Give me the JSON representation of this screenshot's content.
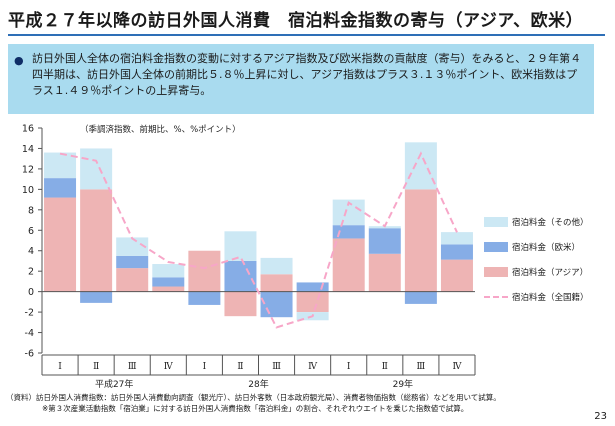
{
  "header": {
    "title": "平成２７年以降の訪日外国人消費　宿泊料金指数の寄与（アジア、欧米）"
  },
  "summary": {
    "bullet": "●",
    "text": "訪日外国人全体の宿泊料金指数の変動に対するアジア指数及び欧米指数の貢献度（寄与）をみると、２９年第４四半期は、訪日外国人全体の前期比５.８％上昇に対し、アジア指数はプラス３.１３％ポイント、欧米指数はプラス１.４９％ポイントの上昇寄与。"
  },
  "chart_data": {
    "type": "bar",
    "title": "",
    "note": "（季調済指数、前期比、%、%ポイント）",
    "ylim": [
      -6,
      16
    ],
    "yticks": [
      16,
      14,
      12,
      10,
      8,
      6,
      4,
      2,
      0,
      -2,
      -4,
      -6
    ],
    "grid": false,
    "categories": [
      "Ⅰ",
      "Ⅱ",
      "Ⅲ",
      "Ⅳ",
      "Ⅰ",
      "Ⅱ",
      "Ⅲ",
      "Ⅳ",
      "Ⅰ",
      "Ⅱ",
      "Ⅲ",
      "Ⅳ"
    ],
    "year_groups": [
      {
        "label": "平成27年",
        "count": 4
      },
      {
        "label": "28年",
        "count": 4
      },
      {
        "label": "29年",
        "count": 4
      }
    ],
    "series": [
      {
        "name": "宿泊料金（その他）",
        "kind": "bar",
        "color": "#cce8f4",
        "values": [
          2.5,
          4.0,
          1.8,
          1.3,
          0.0,
          2.9,
          1.6,
          -0.8,
          2.5,
          0.2,
          4.6,
          1.2
        ]
      },
      {
        "name": "宿泊料金（欧米）",
        "kind": "bar",
        "color": "#86ade6",
        "values": [
          1.9,
          -1.1,
          1.2,
          0.9,
          -1.3,
          3.0,
          -2.5,
          0.9,
          1.3,
          2.5,
          -1.2,
          1.49
        ]
      },
      {
        "name": "宿泊料金（アジア）",
        "kind": "bar",
        "color": "#eeb4b4",
        "values": [
          9.2,
          10.0,
          2.3,
          0.5,
          4.0,
          -2.4,
          1.7,
          -2.0,
          5.2,
          3.7,
          10.0,
          3.13
        ]
      },
      {
        "name": "宿泊料金（全国籍）",
        "kind": "line",
        "color": "#f7a6c8",
        "values": [
          13.5,
          12.8,
          5.2,
          2.9,
          2.3,
          3.4,
          -3.5,
          -2.4,
          8.7,
          6.4,
          13.5,
          5.8
        ]
      }
    ],
    "legend": "right"
  },
  "notes": {
    "line1": "（資料）訪日外国人消費指数：訪日外国人消費動向調査（観光庁）、訪日外客数（日本政府観光局）、消費者物価指数（総務省）などを用いて試算。",
    "line2": "※第３次産業活動指数「宿泊業」に対する訪日外国人消費指数「宿泊料金」の割合、それぞれウエイトを乗じた指数値で試算。"
  },
  "page_number": "23"
}
